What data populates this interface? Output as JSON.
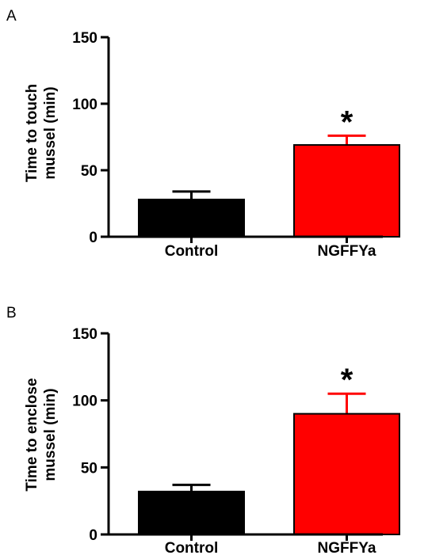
{
  "chart_data": [
    {
      "type": "bar",
      "panel": "A",
      "ylabel_lines": [
        "Time to touch",
        "mussel (min)"
      ],
      "categories": [
        "Control",
        "NGFFYa"
      ],
      "values": [
        28,
        69
      ],
      "error_upper": [
        34,
        76
      ],
      "bar_colors": [
        "#000000",
        "#ff0000"
      ],
      "significance": [
        "",
        "*"
      ],
      "yticks": [
        0,
        50,
        100,
        150
      ],
      "ylim": [
        0,
        150
      ]
    },
    {
      "type": "bar",
      "panel": "B",
      "ylabel_lines": [
        "Time to enclose",
        "mussel (min)"
      ],
      "categories": [
        "Control",
        "NGFFYa"
      ],
      "values": [
        32,
        90
      ],
      "error_upper": [
        37,
        105
      ],
      "bar_colors": [
        "#000000",
        "#ff0000"
      ],
      "significance": [
        "",
        "*"
      ],
      "yticks": [
        0,
        50,
        100,
        150
      ],
      "ylim": [
        0,
        150
      ]
    }
  ]
}
